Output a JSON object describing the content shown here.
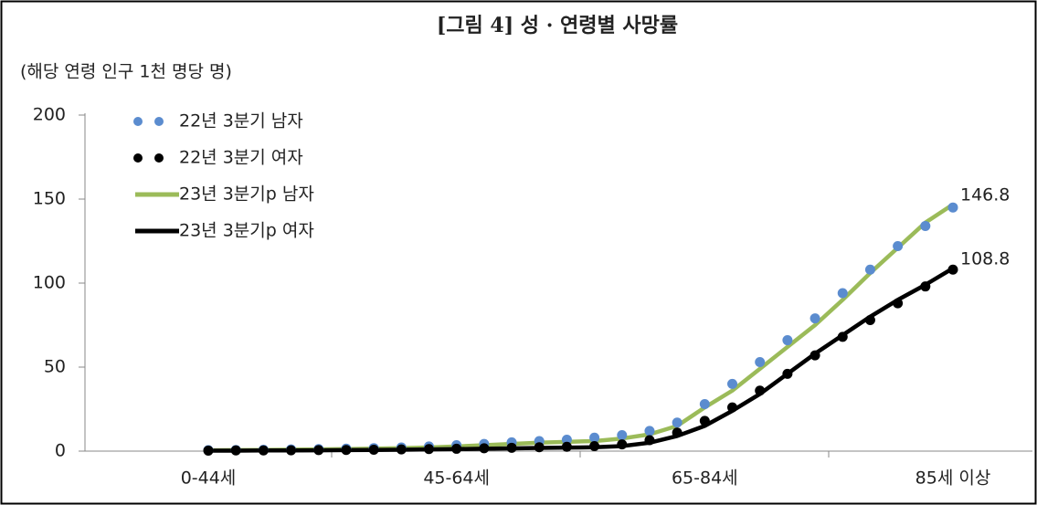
{
  "chart_data": {
    "type": "line",
    "title": "[그림 4] 성 · 연령별 사망률",
    "y_label": "(해당 연령 인구 1천 명당 명)",
    "categories": [
      "0-44세",
      null,
      null,
      null,
      null,
      null,
      null,
      null,
      null,
      "45-64세",
      null,
      null,
      null,
      null,
      null,
      null,
      null,
      null,
      "65-84세",
      null,
      null,
      null,
      null,
      null,
      null,
      null,
      null,
      "85세 이상"
    ],
    "ylim": [
      0,
      200
    ],
    "yticks": [
      0,
      50,
      100,
      150,
      200
    ],
    "legend": "top-left",
    "series": [
      {
        "name": "22년 3분기 남자",
        "color": "#5b8ccf",
        "style": "dots",
        "values": [
          0.6,
          0.7,
          0.8,
          1,
          1.2,
          1.5,
          1.8,
          2.2,
          2.8,
          3.5,
          4.3,
          5.2,
          6,
          6.8,
          8,
          9.5,
          12,
          17,
          28,
          40,
          53,
          66,
          79,
          94,
          108,
          122,
          134,
          145
        ]
      },
      {
        "name": "22년 3분기 여자",
        "color": "#000000",
        "style": "dots",
        "values": [
          0.3,
          0.4,
          0.4,
          0.5,
          0.6,
          0.7,
          0.8,
          1,
          1.2,
          1.4,
          1.7,
          2,
          2.3,
          2.6,
          3,
          4,
          6.5,
          11,
          18,
          26,
          36,
          46,
          57,
          68,
          78,
          88,
          98,
          108
        ]
      },
      {
        "name": "23년 3분기p 남자",
        "color": "#9bbb59",
        "style": "line",
        "values": [
          0.5,
          0.6,
          0.7,
          0.9,
          1,
          1.2,
          1.5,
          1.8,
          2.2,
          2.8,
          3.5,
          4.3,
          5,
          5.5,
          6,
          7.5,
          10,
          15,
          26,
          36,
          49,
          62,
          75,
          90,
          106,
          121,
          136,
          146.8
        ]
      },
      {
        "name": "23년 3분기p 여자",
        "color": "#000000",
        "style": "line",
        "values": [
          0.3,
          0.3,
          0.4,
          0.4,
          0.5,
          0.6,
          0.7,
          0.8,
          1,
          1.2,
          1.4,
          1.6,
          1.9,
          2.1,
          2.3,
          3,
          5,
          9,
          15,
          24,
          34,
          46,
          58,
          69,
          80,
          90,
          99,
          108.8
        ]
      }
    ]
  }
}
